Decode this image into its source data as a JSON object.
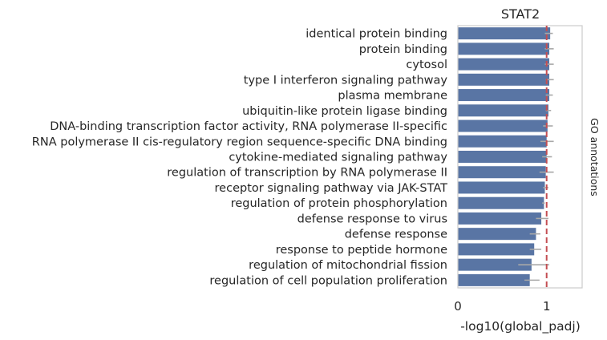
{
  "chart_data": {
    "type": "bar",
    "orientation": "horizontal",
    "title": "STAT2",
    "xlabel": "-log10(global_padj)",
    "right_label": "GO annotations",
    "xlim": [
      0,
      1.4
    ],
    "xticks": [
      0,
      1
    ],
    "threshold": 1.0,
    "categories": [
      "identical protein binding",
      "protein binding",
      "cytosol",
      "type I interferon signaling pathway",
      "plasma membrane",
      "ubiquitin-like protein ligase binding",
      "DNA-binding transcription factor activity, RNA polymerase II-specific",
      "RNA polymerase II cis-regulatory region sequence-specific DNA binding",
      "cytokine-mediated signaling pathway",
      "regulation of transcription by RNA polymerase II",
      "receptor signaling pathway via JAK-STAT",
      "regulation of protein phosphorylation",
      "defense response to virus",
      "defense response",
      "response to peptide hormone",
      "regulation of mitochondrial fission",
      "regulation of cell population proliferation"
    ],
    "values": [
      1.04,
      1.03,
      1.03,
      1.03,
      1.03,
      1.02,
      1.01,
      1.0,
      1.0,
      0.99,
      0.98,
      0.97,
      0.94,
      0.88,
      0.86,
      0.83,
      0.81
    ],
    "errors": [
      [
        0.98,
        1.07
      ],
      [
        0.98,
        1.08
      ],
      [
        0.98,
        1.08
      ],
      [
        0.99,
        1.08
      ],
      [
        0.99,
        1.07
      ],
      [
        0.99,
        1.05
      ],
      [
        0.96,
        1.07
      ],
      [
        0.93,
        1.08
      ],
      [
        0.95,
        1.06
      ],
      [
        0.92,
        1.08
      ],
      [
        0.96,
        1.02
      ],
      [
        0.95,
        0.98
      ],
      [
        0.88,
        1.02
      ],
      [
        0.81,
        0.93
      ],
      [
        0.81,
        0.94
      ],
      [
        0.68,
        1.03
      ],
      [
        0.75,
        0.92
      ]
    ],
    "grid": false,
    "colors": {
      "bar": "#5975a4",
      "error": "#a8a8a8",
      "threshold": "#c44e52",
      "frame": "#cccccc"
    }
  }
}
